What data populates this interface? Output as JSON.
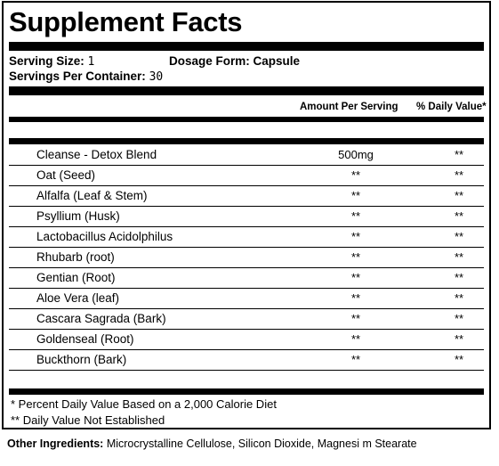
{
  "panel": {
    "title": "Supplement Facts",
    "serving_size_label": "Serving Size:",
    "serving_size_value": "1",
    "dosage_form_label": "Dosage Form:",
    "dosage_form_value": "Capsule",
    "servings_per_container_label": "Servings Per Container:",
    "servings_per_container_value": "30",
    "column_amount": "Amount Per Serving",
    "column_daily_value": "% Daily Value*"
  },
  "ingredients": [
    {
      "name": "Cleanse - Detox Blend",
      "amount": "500mg",
      "dv": "**"
    },
    {
      "name": "Oat (Seed)",
      "amount": "**",
      "dv": "**"
    },
    {
      "name": "Alfalfa (Leaf & Stem)",
      "amount": "**",
      "dv": "**"
    },
    {
      "name": "Psyllium (Husk)",
      "amount": "**",
      "dv": "**"
    },
    {
      "name": "Lactobacillus Acidolphilus",
      "amount": "**",
      "dv": "**"
    },
    {
      "name": "Rhubarb (root)",
      "amount": "**",
      "dv": "**"
    },
    {
      "name": "Gentian  (Root)",
      "amount": "**",
      "dv": "**"
    },
    {
      "name": "Aloe Vera (leaf)",
      "amount": "**",
      "dv": "**"
    },
    {
      "name": "Cascara Sagrada (Bark)",
      "amount": "**",
      "dv": "**"
    },
    {
      "name": "Goldenseal (Root)",
      "amount": "**",
      "dv": "**"
    },
    {
      "name": "Buckthorn (Bark)",
      "amount": "**",
      "dv": "**"
    }
  ],
  "footnotes": {
    "daily_value_basis": "* Percent Daily Value Based on a 2,000 Calorie Diet",
    "not_established": "** Daily Value Not Established"
  },
  "other_ingredients": {
    "label": "Other Ingredients:",
    "text": "Microcrystalline Cellulose, Silicon Dioxide, Magnesi  m Stearate"
  }
}
